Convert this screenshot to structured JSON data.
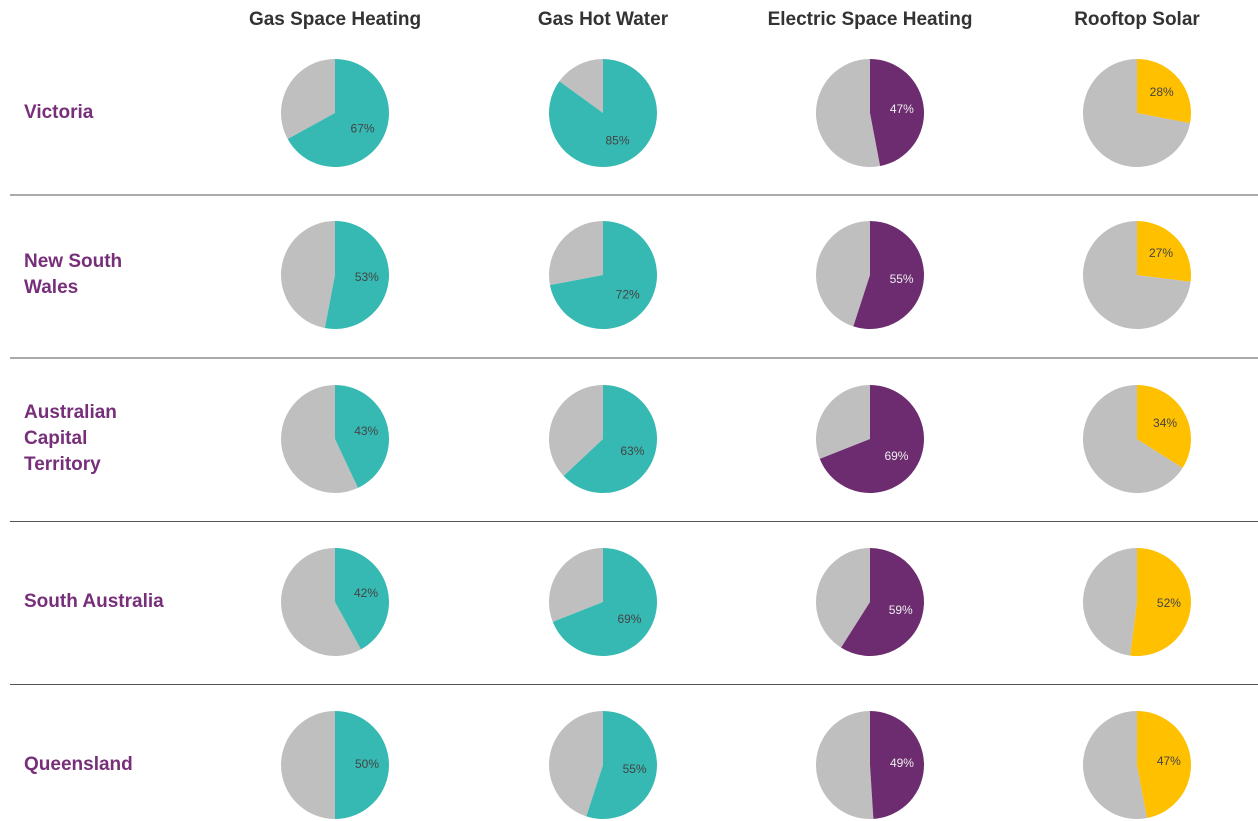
{
  "chart_data": {
    "type": "pie",
    "categories": [
      "Victoria",
      "New South Wales",
      "Australian Capital Territory",
      "South Australia",
      "Queensland"
    ],
    "series": [
      {
        "name": "Gas Space Heating",
        "color": "#35b9b2",
        "values": [
          67,
          53,
          43,
          42,
          50
        ],
        "value_labels": [
          "67%",
          "53%",
          "43%",
          "42%",
          "50%"
        ]
      },
      {
        "name": "Gas Hot Water",
        "color": "#35b9b2",
        "values": [
          85,
          72,
          63,
          69,
          55
        ],
        "value_labels": [
          "85%",
          "72%",
          "63%",
          "69%",
          "55%"
        ]
      },
      {
        "name": "Electric Space Heating",
        "color": "#6c2c6f",
        "values": [
          47,
          55,
          69,
          59,
          49
        ],
        "value_labels": [
          "47%",
          "55%",
          "69%",
          "59%",
          "49%"
        ]
      },
      {
        "name": "Rooftop Solar",
        "color": "#ffc000",
        "values": [
          28,
          27,
          34,
          52,
          47
        ],
        "value_labels": [
          "28%",
          "27%",
          "34%",
          "52%",
          "47%"
        ]
      }
    ],
    "rest_color": "#bfbfbf"
  }
}
